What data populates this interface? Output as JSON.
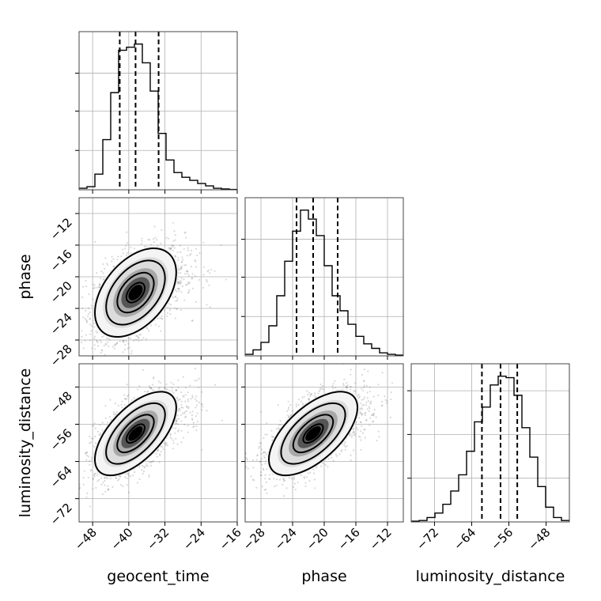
{
  "chart_data": {
    "type": "corner",
    "parameters": [
      "geocent_time",
      "phase",
      "luminosity_distance"
    ],
    "ranges": {
      "geocent_time": [
        -51,
        -16
      ],
      "phase": [
        -30,
        -10
      ],
      "luminosity_distance": [
        -77,
        -43
      ]
    },
    "ticks": {
      "geocent_time": [
        -48,
        -40,
        -32,
        -24,
        -16
      ],
      "phase": [
        -28,
        -24,
        -20,
        -16,
        -12
      ],
      "luminosity_distance": [
        -72,
        -64,
        -56,
        -48
      ]
    },
    "tick_labels": {
      "geocent_time": [
        "−48",
        "−40",
        "−32",
        "−24",
        "−16"
      ],
      "phase": [
        "−28",
        "−24",
        "−20",
        "−16",
        "−12"
      ],
      "luminosity_distance": [
        "−72",
        "−64",
        "−56",
        "−48"
      ]
    },
    "histograms": {
      "geocent_time": {
        "bin_edges": [
          -51,
          -49.25,
          -47.5,
          -45.75,
          -44,
          -42.25,
          -40.5,
          -38.75,
          -37,
          -35.25,
          -33.5,
          -31.75,
          -30,
          -28.25,
          -26.5,
          -24.75,
          -23,
          -21.25,
          -19.5,
          -17.75,
          -16
        ],
        "counts": [
          0.01,
          0.02,
          0.1,
          0.32,
          0.62,
          0.89,
          0.91,
          0.93,
          0.81,
          0.63,
          0.36,
          0.19,
          0.11,
          0.08,
          0.06,
          0.04,
          0.025,
          0.01,
          0.005,
          0.002
        ],
        "quantiles": [
          -42,
          -38.5,
          -33.4
        ]
      },
      "phase": {
        "bin_edges": [
          -30,
          -29,
          -28,
          -27,
          -26,
          -25,
          -24,
          -23,
          -22,
          -21,
          -20,
          -19,
          -18,
          -17,
          -16,
          -15,
          -14,
          -13,
          -12,
          -11,
          -10
        ],
        "counts": [
          0.01,
          0.04,
          0.09,
          0.2,
          0.4,
          0.63,
          0.83,
          0.97,
          0.91,
          0.8,
          0.6,
          0.4,
          0.3,
          0.21,
          0.13,
          0.08,
          0.05,
          0.02,
          0.01,
          0.005
        ],
        "quantiles": [
          -23.5,
          -21.4,
          -18.3
        ]
      },
      "luminosity_distance": {
        "bin_edges": [
          -77,
          -75.3,
          -73.6,
          -71.9,
          -70.2,
          -68.5,
          -66.8,
          -65.1,
          -63.4,
          -61.7,
          -60,
          -58.3,
          -56.6,
          -54.9,
          -53.2,
          -51.5,
          -49.8,
          -48.1,
          -46.4,
          -44.7,
          -43
        ],
        "counts": [
          0.005,
          0.01,
          0.03,
          0.06,
          0.12,
          0.21,
          0.32,
          0.48,
          0.68,
          0.78,
          0.93,
          0.99,
          0.98,
          0.86,
          0.64,
          0.44,
          0.24,
          0.1,
          0.03,
          0.01
        ],
        "quantiles": [
          -61.8,
          -57.8,
          -54.2
        ]
      }
    },
    "pairs": [
      {
        "x": "geocent_time",
        "y": "phase",
        "mean": [
          -38.5,
          -22
        ],
        "sd": [
          4.5,
          2.8
        ],
        "corr": 0.45
      },
      {
        "x": "geocent_time",
        "y": "luminosity_distance",
        "mean": [
          -38.5,
          -58
        ],
        "sd": [
          4.5,
          4.5
        ],
        "corr": 0.62
      },
      {
        "x": "phase",
        "y": "luminosity_distance",
        "mean": [
          -21.4,
          -58
        ],
        "sd": [
          2.8,
          4.5
        ],
        "corr": 0.62
      }
    ],
    "grid": true
  }
}
